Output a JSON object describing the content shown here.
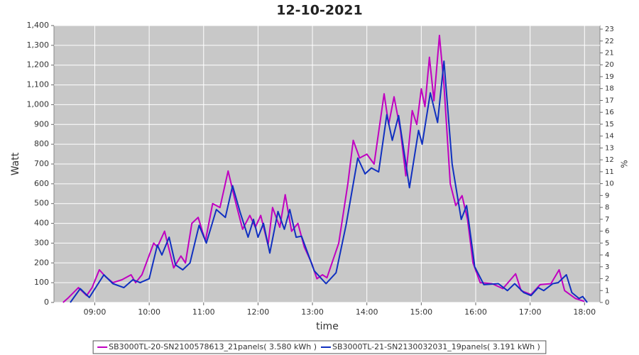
{
  "chart_data": {
    "type": "line",
    "title": "12-10-2021",
    "x_label": "time",
    "y_label": "Watt",
    "y2_label": "%",
    "xlim": [
      "08:15",
      "18:17"
    ],
    "xticks": [
      "09:00",
      "10:00",
      "11:00",
      "12:00",
      "13:00",
      "14:00",
      "15:00",
      "16:00",
      "17:00",
      "18:00"
    ],
    "ylim": [
      0,
      1400
    ],
    "yticks": [
      0,
      100,
      200,
      300,
      400,
      500,
      600,
      700,
      800,
      900,
      {
        "value": 1000,
        "label": "1,000"
      },
      {
        "value": 1100,
        "label": "1,100"
      },
      {
        "value": 1200,
        "label": "1,200"
      },
      {
        "value": 1300,
        "label": "1,300"
      },
      {
        "value": 1400,
        "label": "1,400"
      }
    ],
    "y2lim": [
      0,
      23.3
    ],
    "y2ticks": [
      0,
      1,
      2,
      3,
      4,
      5,
      6,
      7,
      8,
      9,
      10,
      11,
      12,
      13,
      14,
      15,
      16,
      17,
      18,
      19,
      20,
      21,
      22,
      23
    ],
    "grid": true,
    "series": [
      {
        "name": "SB3000TL-20-SN2100578613_21panels( 3.580 kWh )",
        "color": "#c000c0",
        "x": [
          "08:25",
          "08:30",
          "08:42",
          "08:51",
          "08:57",
          "09:05",
          "09:12",
          "09:20",
          "09:30",
          "09:40",
          "09:45",
          "09:52",
          "10:05",
          "10:09",
          "10:17",
          "10:27",
          "10:35",
          "10:40",
          "10:47",
          "10:54",
          "11:02",
          "11:10",
          "11:18",
          "11:27",
          "11:34",
          "11:43",
          "11:51",
          "11:57",
          "12:03",
          "12:11",
          "12:16",
          "12:24",
          "12:30",
          "12:37",
          "12:44",
          "12:51",
          "12:59",
          "13:05",
          "13:11",
          "13:16",
          "13:29",
          "13:39",
          "13:45",
          "13:52",
          "14:00",
          "14:08",
          "14:19",
          "14:24",
          "14:30",
          "14:37",
          "14:43",
          "14:50",
          "14:55",
          "15:00",
          "15:04",
          "15:09",
          "15:14",
          "15:20",
          "15:25",
          "15:32",
          "15:38",
          "15:45",
          "15:51",
          "15:57",
          "16:05",
          "16:18",
          "16:30",
          "16:44",
          "16:50",
          "17:01",
          "17:11",
          "17:23",
          "17:32",
          "17:38",
          "17:50",
          "18:00"
        ],
        "values": [
          0,
          20,
          75,
          35,
          75,
          165,
          130,
          100,
          115,
          140,
          100,
          140,
          300,
          280,
          360,
          175,
          235,
          200,
          400,
          430,
          310,
          500,
          480,
          665,
          530,
          370,
          440,
          380,
          440,
          290,
          480,
          380,
          545,
          360,
          400,
          280,
          200,
          120,
          140,
          125,
          300,
          600,
          820,
          730,
          750,
          700,
          1055,
          900,
          1040,
          870,
          640,
          970,
          900,
          1080,
          990,
          1240,
          1020,
          1350,
          1100,
          600,
          490,
          540,
          420,
          200,
          100,
          95,
          70,
          145,
          60,
          40,
          90,
          95,
          165,
          60,
          20,
          5
        ]
      },
      {
        "name": "SB3000TL-21-SN2130032031_19panels( 3.191 kWh )",
        "color": "#1030c0",
        "x": [
          "08:33",
          "08:44",
          "08:54",
          "09:10",
          "09:20",
          "09:32",
          "09:42",
          "09:50",
          "10:00",
          "10:09",
          "10:14",
          "10:22",
          "10:29",
          "10:37",
          "10:45",
          "10:55",
          "11:03",
          "11:14",
          "11:24",
          "11:32",
          "11:40",
          "11:49",
          "11:55",
          "12:00",
          "12:06",
          "12:13",
          "12:22",
          "12:29",
          "12:35",
          "12:42",
          "12:48",
          "13:02",
          "13:15",
          "13:26",
          "13:37",
          "13:50",
          "13:58",
          "14:05",
          "14:13",
          "14:22",
          "14:28",
          "14:35",
          "14:47",
          "14:57",
          "15:01",
          "15:10",
          "15:18",
          "15:25",
          "15:34",
          "15:44",
          "15:50",
          "15:59",
          "16:09",
          "16:25",
          "16:35",
          "16:43",
          "16:53",
          "17:01",
          "17:09",
          "17:15",
          "17:25",
          "17:31",
          "17:40",
          "17:46",
          "17:54",
          "17:58",
          "18:03"
        ],
        "values": [
          0,
          70,
          25,
          140,
          95,
          75,
          115,
          100,
          120,
          290,
          240,
          330,
          190,
          165,
          200,
          390,
          300,
          470,
          430,
          590,
          460,
          330,
          420,
          330,
          400,
          250,
          460,
          370,
          470,
          330,
          335,
          160,
          95,
          150,
          390,
          730,
          650,
          680,
          660,
          950,
          820,
          945,
          580,
          870,
          800,
          1060,
          910,
          1220,
          700,
          420,
          490,
          180,
          90,
          95,
          60,
          95,
          50,
          35,
          75,
          60,
          95,
          100,
          140,
          50,
          20,
          30,
          0
        ]
      }
    ]
  }
}
